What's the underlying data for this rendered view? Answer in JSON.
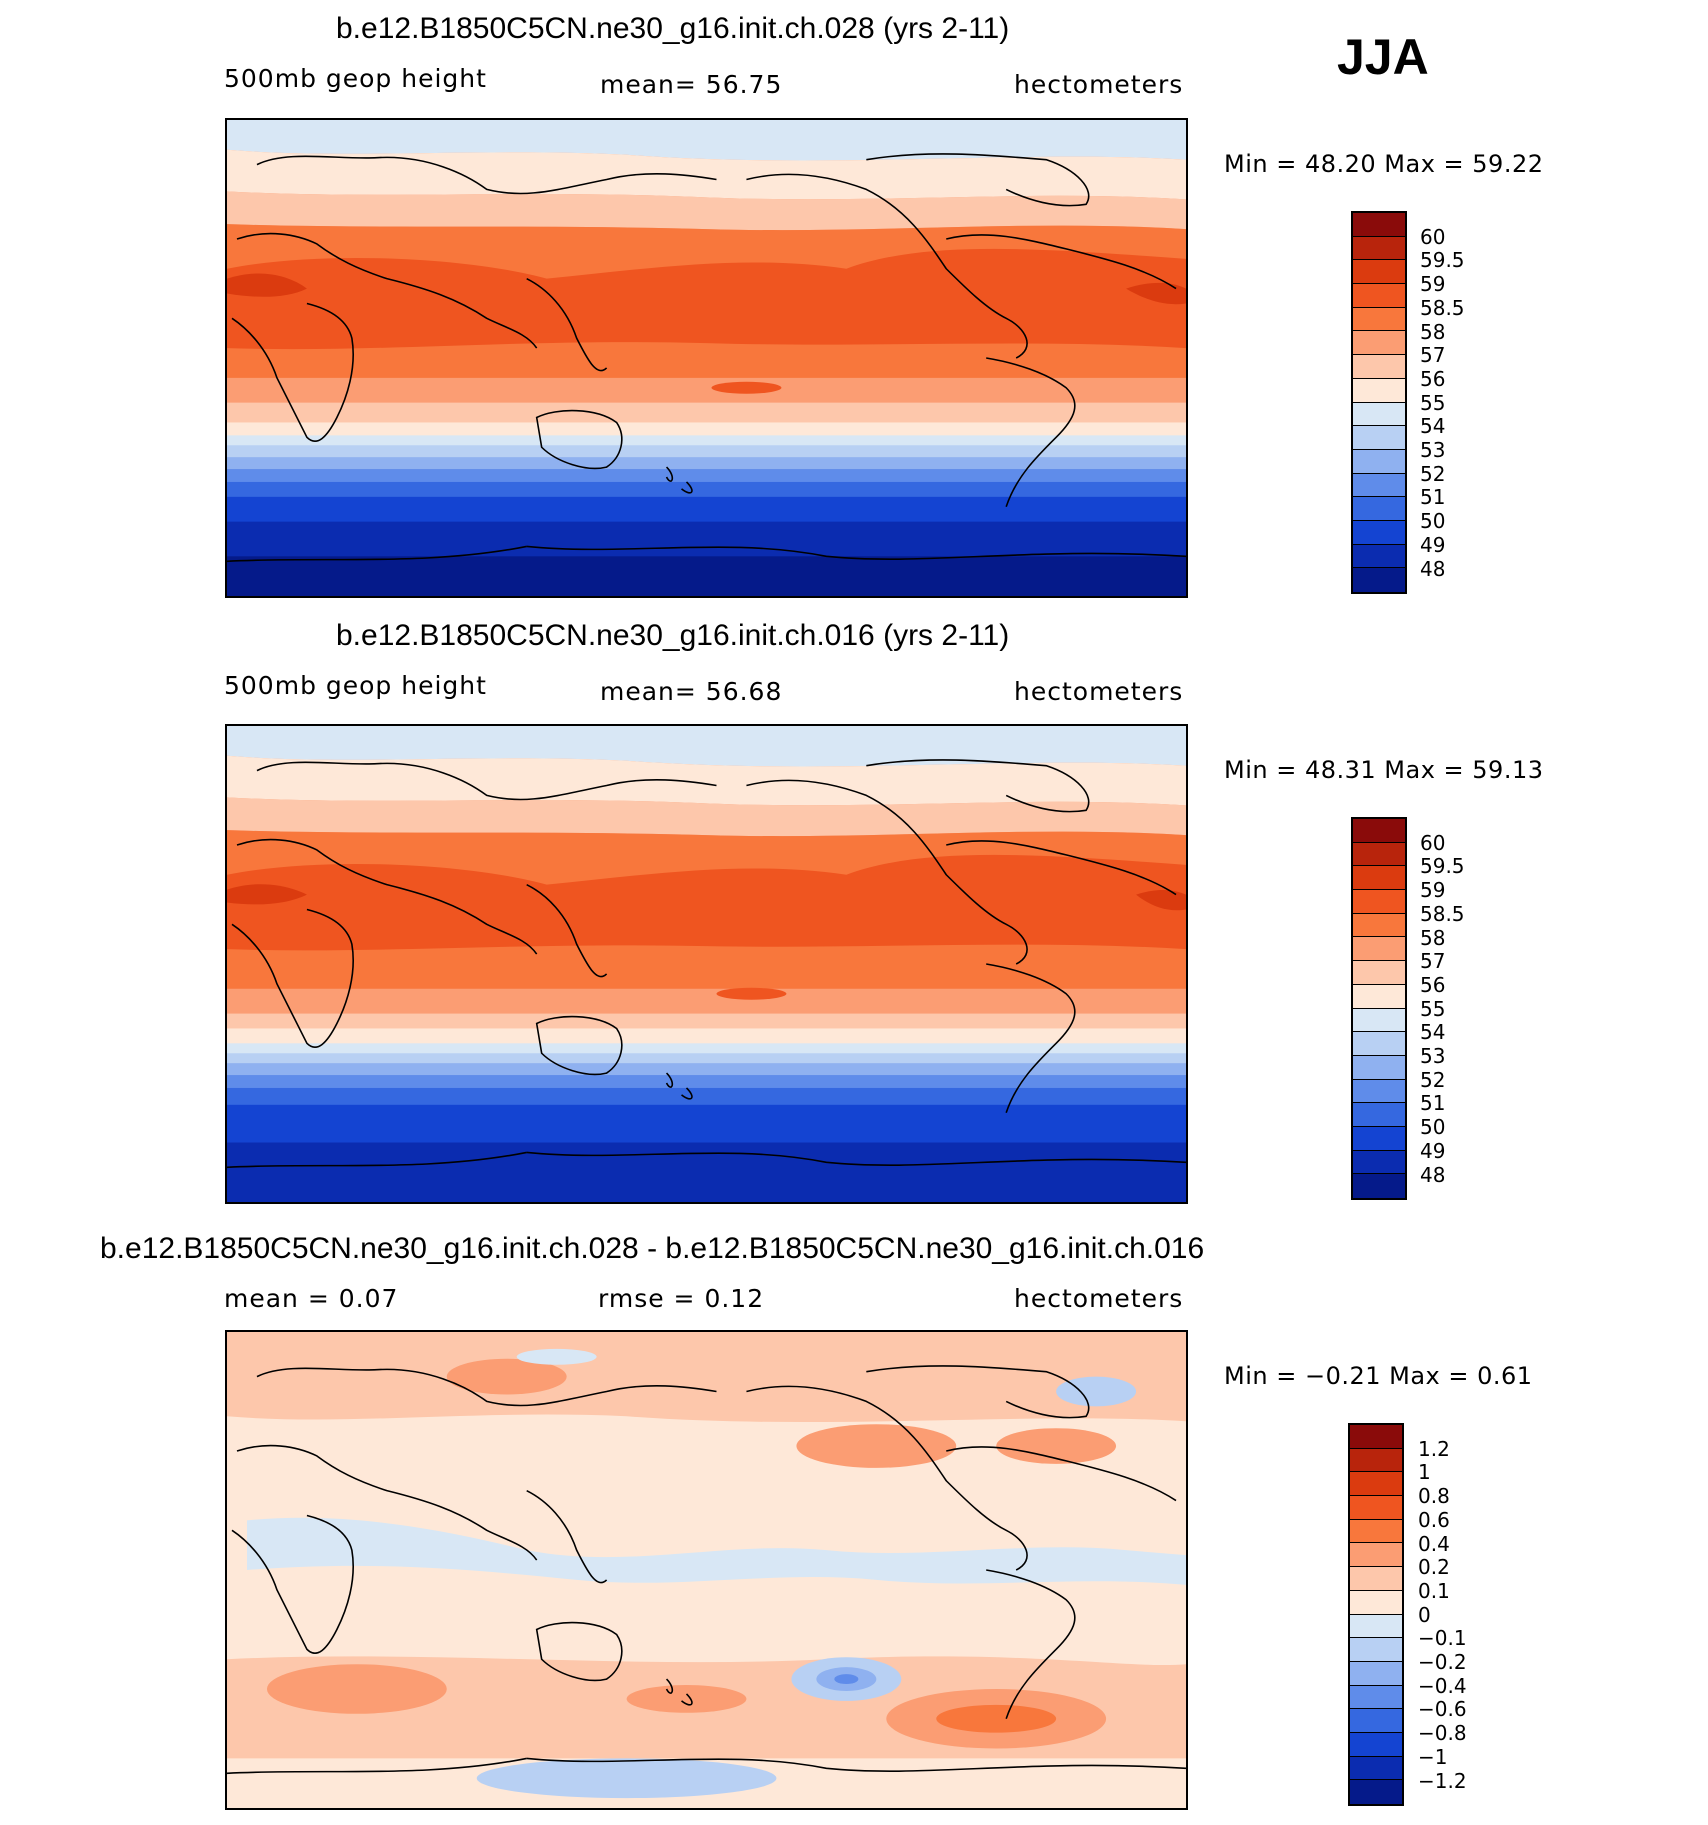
{
  "season": "JJA",
  "panels": [
    {
      "title": "b.e12.B1850C5CN.ne30_g16.init.ch.028 (yrs 2-11)",
      "left_label": "500mb geop height",
      "center_label": "mean=   56.75",
      "right_label": "hectometers",
      "minmax": "Min =   48.20  Max =   59.22",
      "colorbar": {
        "labels": [
          "60",
          "59.5",
          "59",
          "58.5",
          "58",
          "57",
          "56",
          "55",
          "54",
          "53",
          "52",
          "51",
          "50",
          "49",
          "48"
        ],
        "colors": [
          "#8a0b0a",
          "#b8240c",
          "#db3b0f",
          "#ef5520",
          "#f8773c",
          "#fb9d73",
          "#fdc7ab",
          "#fee8d8",
          "#d8e7f5",
          "#b8d0f3",
          "#8fb1f0",
          "#5f8cea",
          "#3568e0",
          "#1444d2",
          "#0b2cb0",
          "#051a8a"
        ]
      },
      "map_type": "abs"
    },
    {
      "title": "b.e12.B1850C5CN.ne30_g16.init.ch.016 (yrs 2-11)",
      "left_label": "500mb geop height",
      "center_label": "mean=   56.68",
      "right_label": "hectometers",
      "minmax": "Min =   48.31  Max =   59.13",
      "colorbar": {
        "labels": [
          "60",
          "59.5",
          "59",
          "58.5",
          "58",
          "57",
          "56",
          "55",
          "54",
          "53",
          "52",
          "51",
          "50",
          "49",
          "48"
        ],
        "colors": [
          "#8a0b0a",
          "#b8240c",
          "#db3b0f",
          "#ef5520",
          "#f8773c",
          "#fb9d73",
          "#fdc7ab",
          "#fee8d8",
          "#d8e7f5",
          "#b8d0f3",
          "#8fb1f0",
          "#5f8cea",
          "#3568e0",
          "#1444d2",
          "#0b2cb0",
          "#051a8a"
        ]
      },
      "map_type": "abs"
    },
    {
      "title": "b.e12.B1850C5CN.ne30_g16.init.ch.028 - b.e12.B1850C5CN.ne30_g16.init.ch.016",
      "left_label": "mean =     0.07",
      "center_label": "rmse =     0.12",
      "right_label": "hectometers",
      "minmax": "Min =   −0.21  Max =     0.61",
      "colorbar": {
        "labels": [
          "1.2",
          "1",
          "0.8",
          "0.6",
          "0.4",
          "0.2",
          "0.1",
          "0",
          "−0.1",
          "−0.2",
          "−0.4",
          "−0.6",
          "−0.8",
          "−1",
          "−1.2"
        ],
        "colors": [
          "#8a0b0a",
          "#b8240c",
          "#db3b0f",
          "#ef5520",
          "#f8773c",
          "#fb9d73",
          "#fdc7ab",
          "#fee8d8",
          "#d8e7f5",
          "#b8d0f3",
          "#8fb1f0",
          "#5f8cea",
          "#3568e0",
          "#1444d2",
          "#0b2cb0",
          "#051a8a"
        ]
      },
      "map_type": "diff"
    }
  ]
}
